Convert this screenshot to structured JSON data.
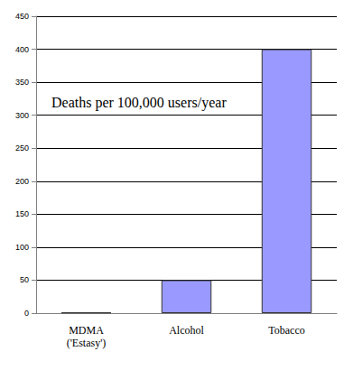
{
  "chart_data": {
    "type": "bar",
    "title": "Deaths per 100,000 users/year",
    "categories": [
      "MDMA\n('Estasy')",
      "Alcohol",
      "Tobacco"
    ],
    "values": [
      1,
      50,
      400
    ],
    "color": "#9999ff",
    "ylim": [
      0,
      450
    ],
    "yticks": [
      0,
      50,
      100,
      150,
      200,
      250,
      300,
      350,
      400,
      450
    ],
    "grid": true
  }
}
